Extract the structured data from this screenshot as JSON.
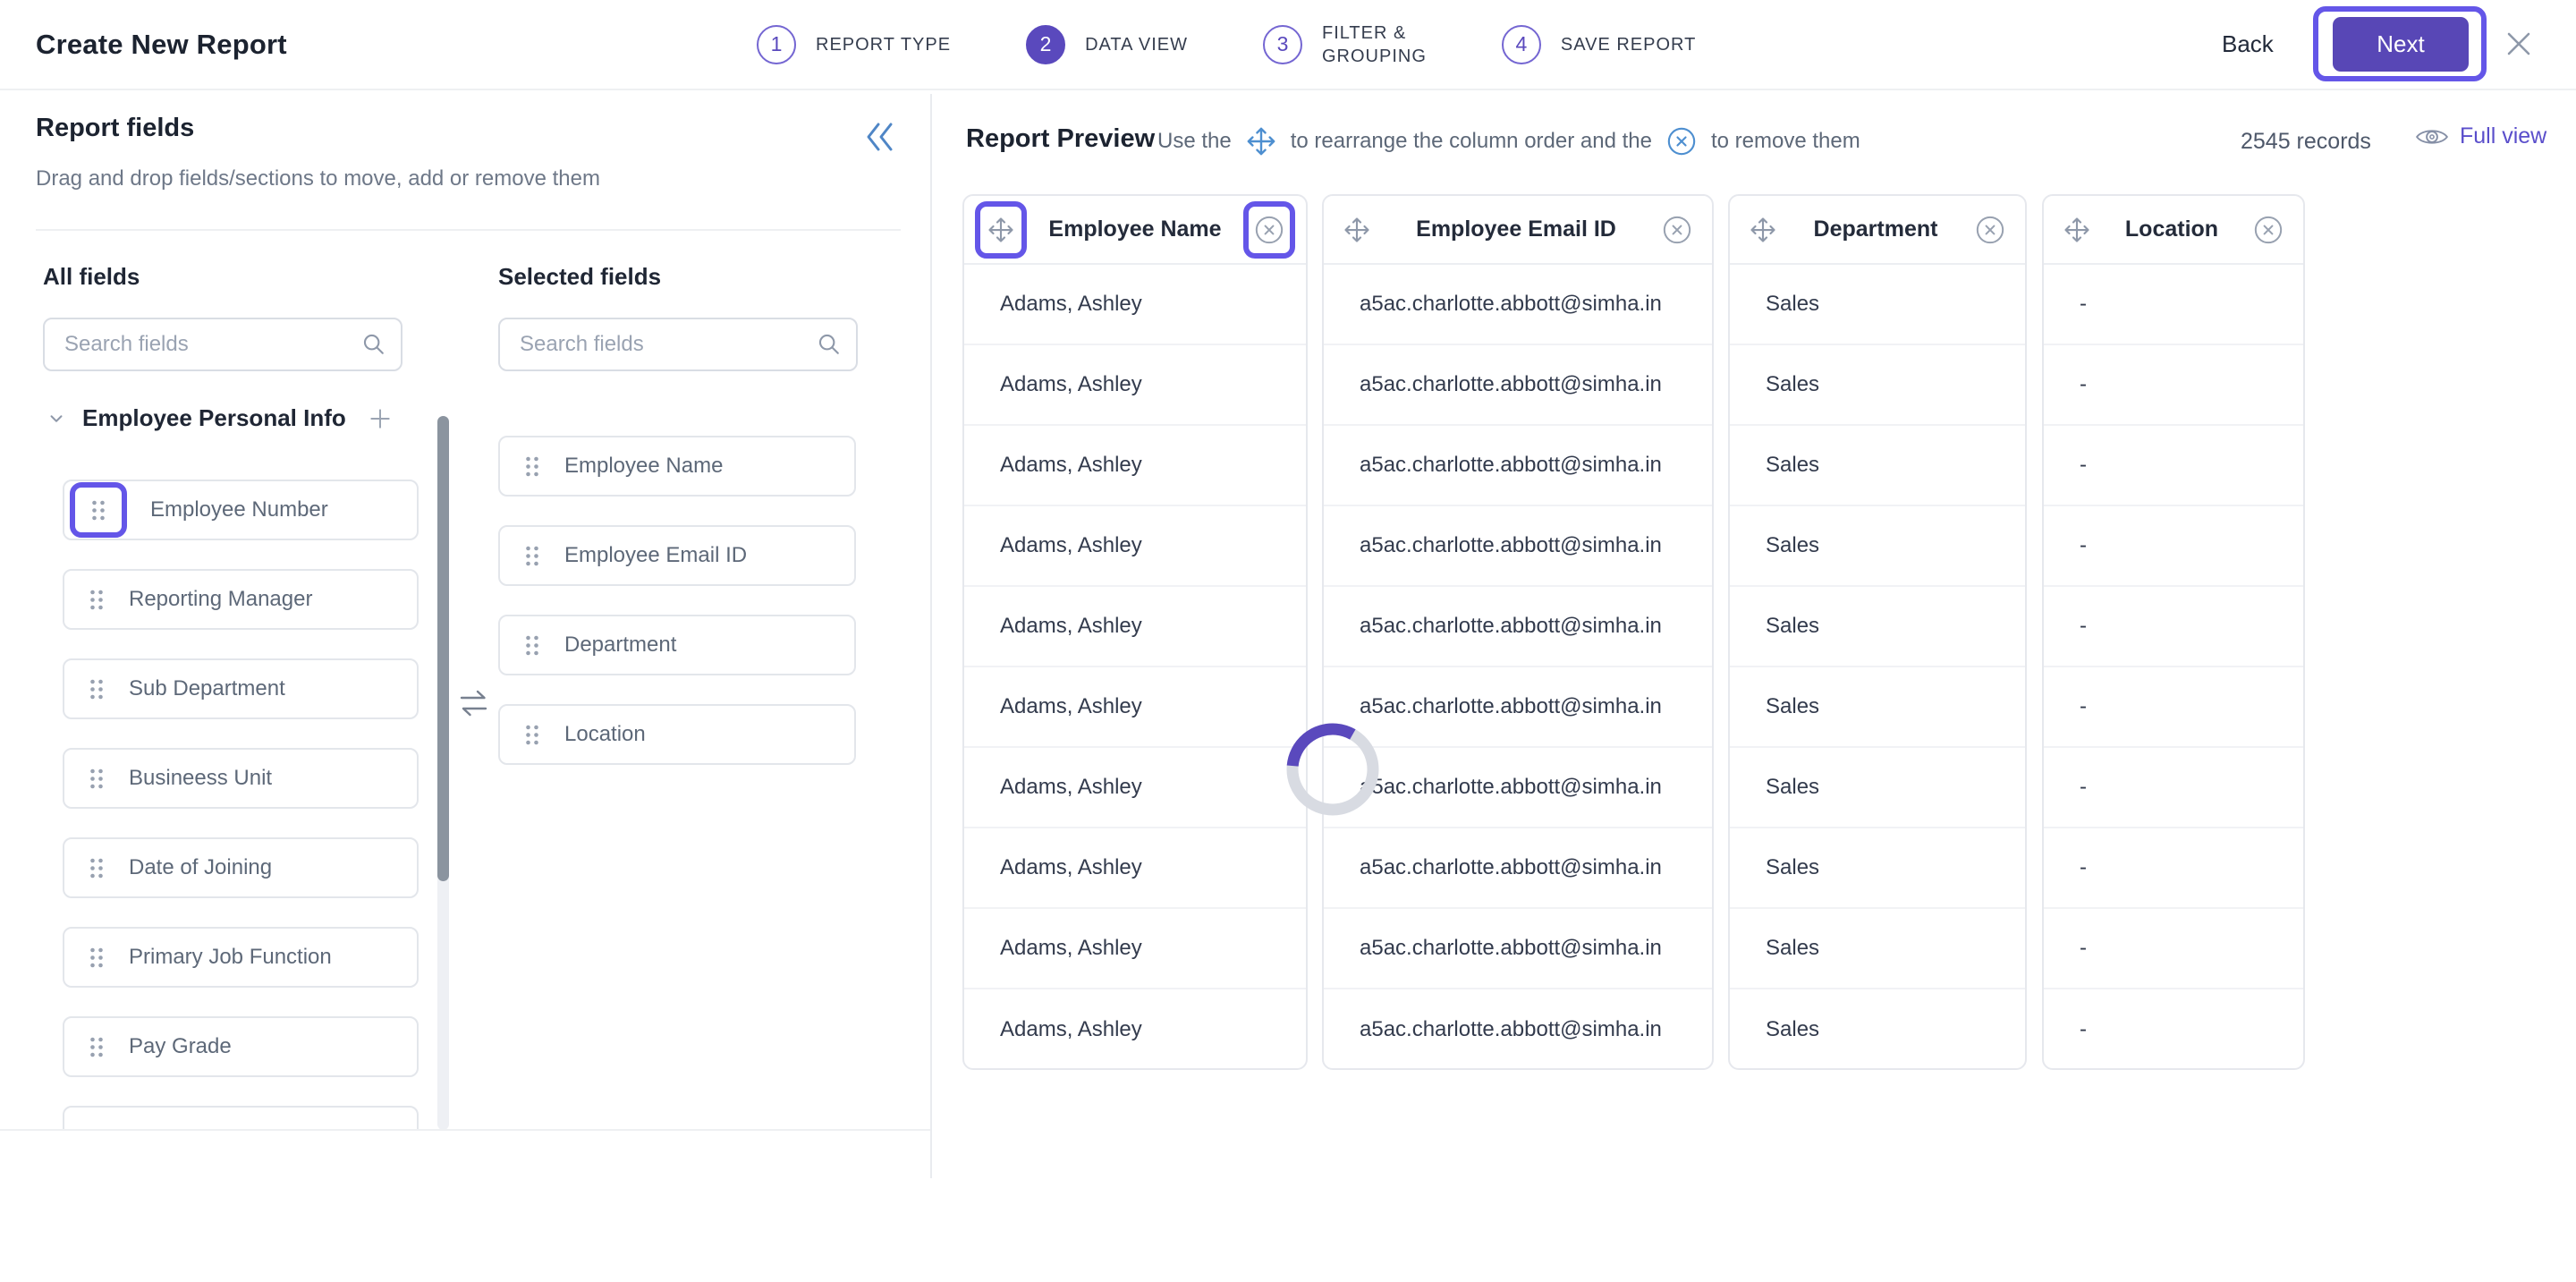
{
  "header": {
    "title": "Create New Report",
    "back_label": "Back",
    "next_label": "Next",
    "steps": [
      {
        "number": "1",
        "label": "REPORT TYPE",
        "active": false
      },
      {
        "number": "2",
        "label": "DATA VIEW",
        "active": true
      },
      {
        "number": "3",
        "label": "FILTER &\nGROUPING",
        "active": false
      },
      {
        "number": "4",
        "label": "SAVE REPORT",
        "active": false
      }
    ]
  },
  "fields_panel": {
    "title": "Report fields",
    "subtitle": "Drag and drop fields/sections to move, add or remove them",
    "all_fields": {
      "title": "All fields",
      "search_placeholder": "Search fields",
      "section_name": "Employee Personal Info",
      "highlighted_item_index": 0,
      "items": [
        "Employee Number",
        "Reporting Manager",
        "Sub Department",
        "Busineess Unit",
        "Date of Joining",
        "Primary Job Function",
        "Pay Grade"
      ]
    },
    "selected_fields": {
      "title": "Selected fields",
      "search_placeholder": "Search fields",
      "items": [
        "Employee Name",
        "Employee Email ID",
        "Department",
        "Location"
      ]
    }
  },
  "preview": {
    "title": "Report Preview",
    "hint": {
      "part1": "Use the",
      "part2": "to rearrange the column order and the",
      "part3": "to remove them"
    },
    "records_label": "2545 records",
    "full_view_label": "Full view",
    "table": {
      "highlighted_column": 0,
      "columns": [
        "Employee Name",
        "Employee Email ID",
        "Department",
        "Location"
      ],
      "rows": [
        [
          "Adams, Ashley",
          "a5ac.charlotte.abbott@simha.in",
          "Sales",
          "-"
        ],
        [
          "Adams, Ashley",
          "a5ac.charlotte.abbott@simha.in",
          "Sales",
          "-"
        ],
        [
          "Adams, Ashley",
          "a5ac.charlotte.abbott@simha.in",
          "Sales",
          "-"
        ],
        [
          "Adams, Ashley",
          "a5ac.charlotte.abbott@simha.in",
          "Sales",
          "-"
        ],
        [
          "Adams, Ashley",
          "a5ac.charlotte.abbott@simha.in",
          "Sales",
          "-"
        ],
        [
          "Adams, Ashley",
          "a5ac.charlotte.abbott@simha.in",
          "Sales",
          "-"
        ],
        [
          "Adams, Ashley",
          "a5ac.charlotte.abbott@simha.in",
          "Sales",
          "-"
        ],
        [
          "Adams, Ashley",
          "a5ac.charlotte.abbott@simha.in",
          "Sales",
          "-"
        ],
        [
          "Adams, Ashley",
          "a5ac.charlotte.abbott@simha.in",
          "Sales",
          "-"
        ],
        [
          "Adams, Ashley",
          "a5ac.charlotte.abbott@simha.in",
          "Sales",
          "-"
        ]
      ]
    }
  },
  "colors": {
    "accent_purple": "#5847b6",
    "highlight_purple": "#6456e8",
    "link_purple": "#5a4ecb",
    "info_blue": "#4e8fd0",
    "icon_gray": "#8e98a9",
    "text_dark": "#1f2634",
    "text_muted": "#5d6878"
  }
}
